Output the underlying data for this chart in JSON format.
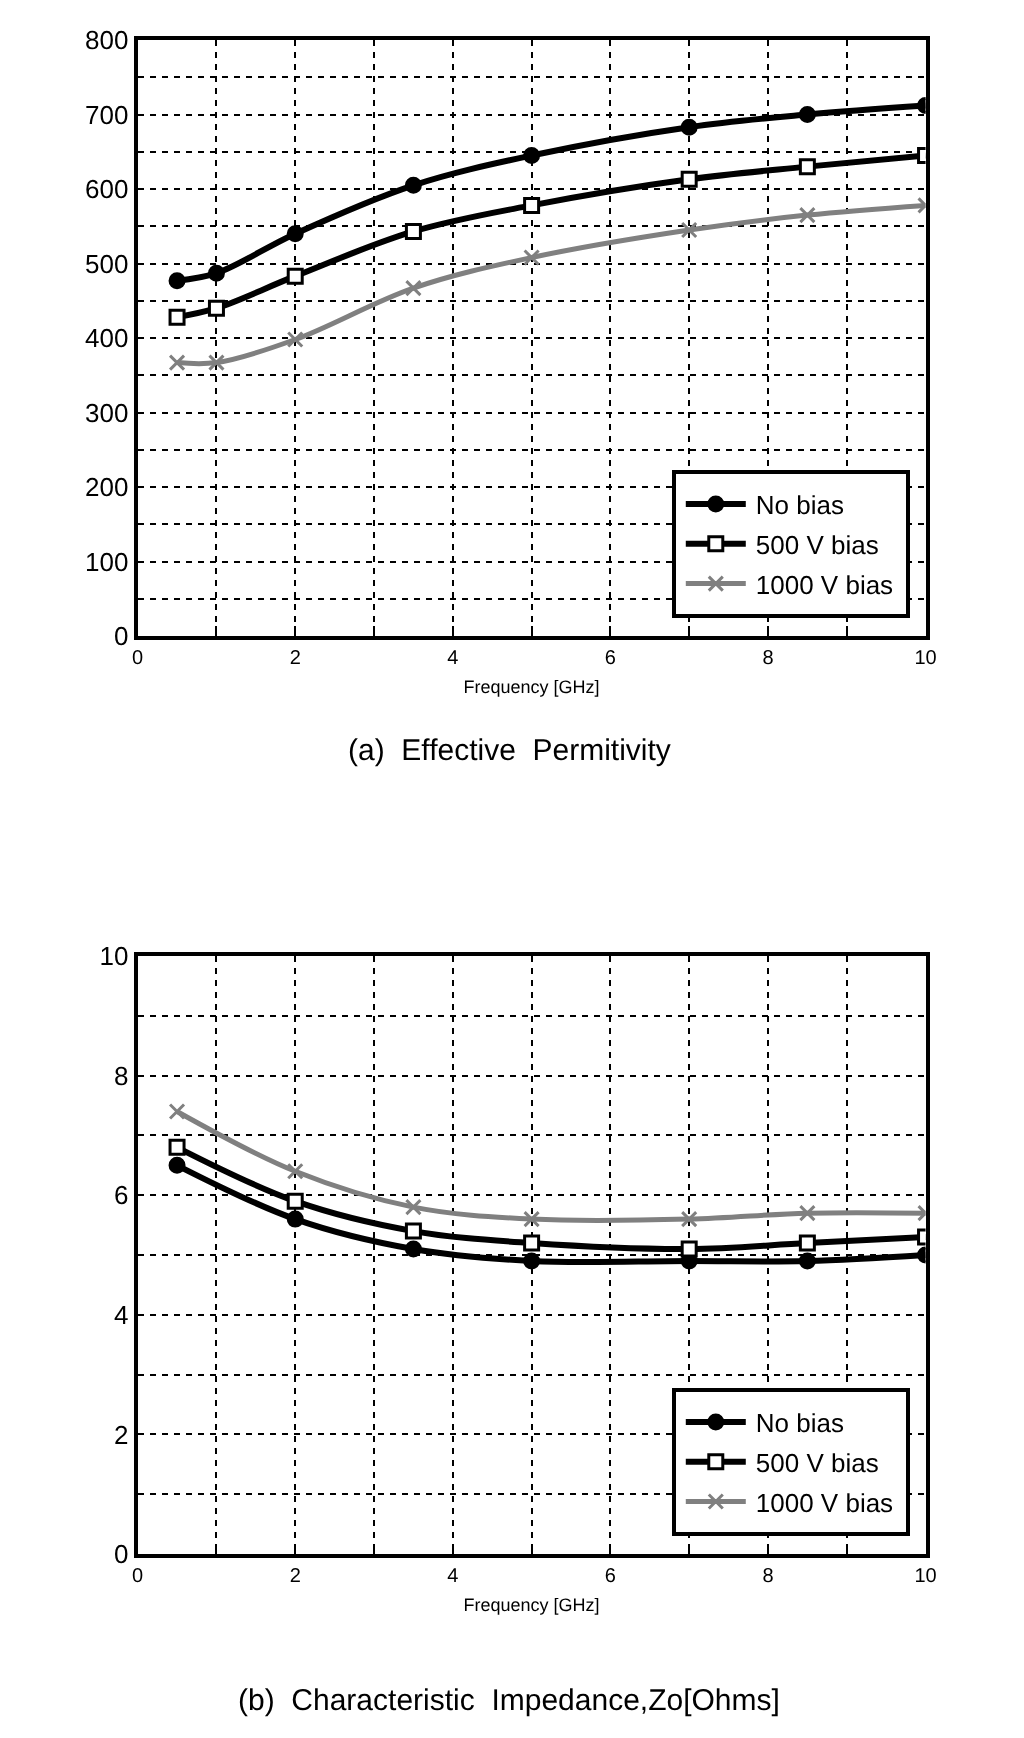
{
  "chart_data": [
    {
      "type": "line",
      "title": "(a)  Effective  Permitivity",
      "xlabel": "Frequency [GHz]",
      "x": [
        0.5,
        1,
        2,
        3.5,
        5,
        7,
        8.5,
        10
      ],
      "series": [
        {
          "name": "No bias",
          "color": "#000000",
          "marker": "circle",
          "values": [
            477,
            487,
            540,
            605,
            645,
            683,
            700,
            712
          ]
        },
        {
          "name": "500 V bias",
          "color": "#000000",
          "marker": "square",
          "values": [
            428,
            440,
            483,
            543,
            578,
            613,
            630,
            645
          ]
        },
        {
          "name": "1000 V bias",
          "color": "#808080",
          "marker": "cross",
          "values": [
            367,
            367,
            398,
            467,
            508,
            545,
            565,
            578
          ]
        }
      ],
      "xlim": [
        0,
        10
      ],
      "xticks": [
        0,
        {
          "value": 1,
          "label": null
        },
        2,
        {
          "value": 3,
          "label": null
        },
        4,
        {
          "value": 5,
          "label": null
        },
        6,
        {
          "value": 7,
          "label": null
        },
        8,
        {
          "value": 9,
          "label": null
        },
        10
      ],
      "ylim": [
        0,
        800
      ],
      "yticks": [
        0,
        {
          "value": 50,
          "label": null
        },
        100,
        {
          "value": 150,
          "label": null
        },
        200,
        {
          "value": 250,
          "label": null
        },
        300,
        {
          "value": 350,
          "label": null
        },
        400,
        {
          "value": 450,
          "label": null
        },
        500,
        {
          "value": 550,
          "label": null
        },
        600,
        {
          "value": 650,
          "label": null
        },
        700,
        {
          "value": 750,
          "label": null
        },
        800
      ],
      "grid": true,
      "legend": "bottom right",
      "line_style": "solid"
    },
    {
      "type": "line",
      "title": "(b)  Characteristic  Impedance,Zo[Ohms]",
      "xlabel": "Frequency [GHz]",
      "x": [
        0.5,
        2,
        3.5,
        5,
        7,
        8.5,
        10
      ],
      "series": [
        {
          "name": "No bias",
          "color": "#000000",
          "marker": "circle",
          "values": [
            6.5,
            5.6,
            5.1,
            4.9,
            4.9,
            4.9,
            5.0
          ]
        },
        {
          "name": "500 V bias",
          "color": "#000000",
          "marker": "square",
          "values": [
            6.8,
            5.9,
            5.4,
            5.2,
            5.1,
            5.2,
            5.3
          ]
        },
        {
          "name": "1000 V bias",
          "color": "#808080",
          "marker": "cross",
          "values": [
            7.4,
            6.4,
            5.8,
            5.6,
            5.6,
            5.7,
            5.7
          ]
        }
      ],
      "xlim": [
        0,
        10
      ],
      "xticks": [
        0,
        {
          "value": 1,
          "label": null
        },
        2,
        {
          "value": 3,
          "label": null
        },
        4,
        {
          "value": 5,
          "label": null
        },
        6,
        {
          "value": 7,
          "label": null
        },
        8,
        {
          "value": 9,
          "label": null
        },
        10
      ],
      "ylim": [
        0,
        10
      ],
      "yticks": [
        0,
        {
          "value": 1,
          "label": null
        },
        2,
        {
          "value": 3,
          "label": null
        },
        4,
        {
          "value": 5,
          "label": null
        },
        6,
        {
          "value": 7,
          "label": null
        },
        8,
        {
          "value": 9,
          "label": null
        },
        10
      ],
      "grid": true,
      "legend": "bottom right",
      "line_style": "solid"
    }
  ]
}
